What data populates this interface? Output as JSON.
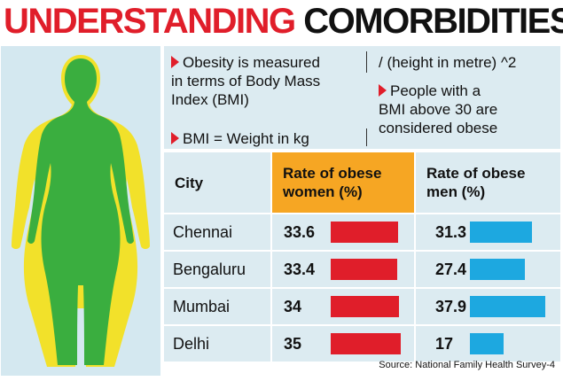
{
  "title": {
    "part1": "UNDERSTANDING",
    "part2": "COMORBIDITIES"
  },
  "info": {
    "line1": "Obesity is measured in terms of Body Mass Index (BMI)",
    "line1a": "Obesity is measured",
    "line1b": "in terms of Body Mass",
    "line1c": "Index (BMI)",
    "formula": "BMI = Weight in kg",
    "formula_cont": "/ (height in metre) ^2",
    "obese_a": "People with a",
    "obese_b": "BMI above 30 are",
    "obese_c": "considered obese"
  },
  "colors": {
    "title_red": "#e01e2a",
    "women_bar": "#e01e2a",
    "men_bar": "#1da8e0",
    "women_header": "#f6a623",
    "panel": "#dcebf1",
    "figure_outer": "#f2e12a",
    "figure_inner": "#3aae3f"
  },
  "chart_data": {
    "type": "table",
    "columns": [
      "City",
      "Rate of obese women (%)",
      "Rate of obese men (%)"
    ],
    "header": {
      "city": "City",
      "women_a": "Rate of obese",
      "women_b": "women (%)",
      "men_a": "Rate of obese",
      "men_b": "men (%)"
    },
    "categories": [
      "Chennai",
      "Bengaluru",
      "Mumbai",
      "Delhi"
    ],
    "series": [
      {
        "name": "Rate of obese women (%)",
        "values": [
          33.6,
          33.4,
          34,
          35
        ]
      },
      {
        "name": "Rate of obese men (%)",
        "values": [
          31.3,
          27.4,
          37.9,
          17
        ]
      }
    ],
    "value_labels": {
      "women": [
        "33.6",
        "33.4",
        "34",
        "35"
      ],
      "men": [
        "31.3",
        "27.4",
        "37.9",
        "17"
      ]
    },
    "source": "Source: National Family Health Survey-4"
  }
}
